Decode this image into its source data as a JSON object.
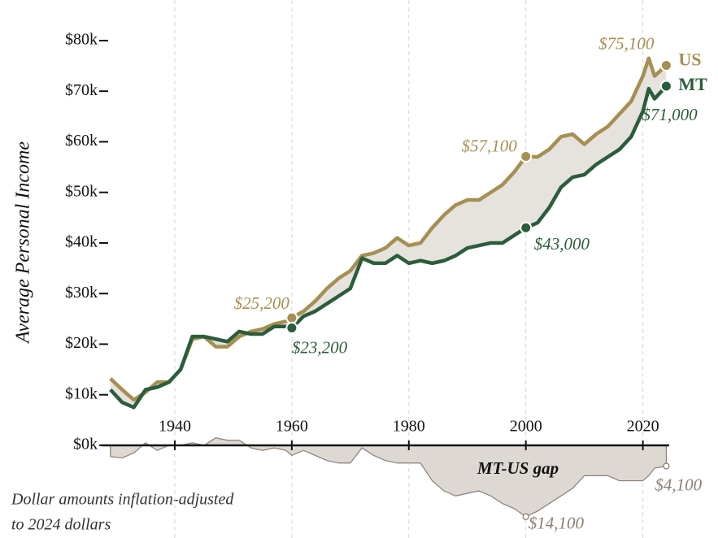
{
  "chart_data": {
    "type": "line",
    "ylabel": "Average Personal Income",
    "note": [
      "Dollar amounts inflation-adjusted",
      "to 2024 dollars"
    ],
    "x": [
      1929,
      1931,
      1933,
      1935,
      1937,
      1939,
      1941,
      1943,
      1945,
      1947,
      1949,
      1951,
      1953,
      1955,
      1957,
      1959,
      1960,
      1962,
      1964,
      1966,
      1968,
      1970,
      1972,
      1974,
      1976,
      1978,
      1980,
      1982,
      1984,
      1986,
      1988,
      1990,
      1992,
      1994,
      1996,
      1998,
      2000,
      2002,
      2004,
      2006,
      2008,
      2010,
      2012,
      2014,
      2016,
      2018,
      2020,
      2021,
      2022,
      2024
    ],
    "series": [
      {
        "name": "US",
        "color": "#a68f52",
        "values": [
          13200,
          11000,
          9000,
          10500,
          12500,
          12500,
          15000,
          21000,
          21500,
          19500,
          19500,
          21500,
          22500,
          23000,
          24000,
          24500,
          25200,
          26500,
          28500,
          31000,
          33000,
          34500,
          37500,
          38000,
          39000,
          41000,
          39500,
          40000,
          43000,
          45500,
          47500,
          48500,
          48500,
          50000,
          51500,
          54000,
          57100,
          57000,
          58500,
          61000,
          61500,
          59500,
          61500,
          63000,
          65500,
          68000,
          73000,
          76500,
          73000,
          75100
        ],
        "value_labels": [
          null,
          null,
          null,
          null,
          null,
          null,
          null,
          null,
          null,
          null,
          null,
          null,
          null,
          null,
          null,
          null,
          "$25,200",
          null,
          null,
          null,
          null,
          null,
          null,
          null,
          null,
          null,
          null,
          null,
          null,
          null,
          null,
          null,
          null,
          null,
          null,
          null,
          "$57,100",
          null,
          null,
          null,
          null,
          null,
          null,
          null,
          null,
          null,
          null,
          null,
          null,
          "$75,100"
        ]
      },
      {
        "name": "MT",
        "color": "#2b5d3c",
        "values": [
          11000,
          8500,
          7500,
          11000,
          11500,
          12500,
          15000,
          21500,
          21500,
          21000,
          20500,
          22500,
          22000,
          22000,
          23500,
          23500,
          23200,
          25500,
          26500,
          28000,
          29500,
          31000,
          37000,
          36000,
          36000,
          37500,
          36000,
          36500,
          36000,
          36500,
          37500,
          39000,
          39500,
          40000,
          40000,
          41500,
          43000,
          44000,
          47000,
          51000,
          53000,
          53500,
          55500,
          57000,
          58500,
          61000,
          66000,
          70500,
          68500,
          71000
        ],
        "value_labels": [
          null,
          null,
          null,
          null,
          null,
          null,
          null,
          null,
          null,
          null,
          null,
          null,
          null,
          null,
          null,
          null,
          "$23,200",
          null,
          null,
          null,
          null,
          null,
          null,
          null,
          null,
          null,
          null,
          null,
          null,
          null,
          null,
          null,
          null,
          null,
          null,
          null,
          "$43,000",
          null,
          null,
          null,
          null,
          null,
          null,
          null,
          null,
          null,
          null,
          null,
          null,
          "$71,000"
        ]
      },
      {
        "name": "MT-US gap",
        "color": "#8a7f76",
        "kind": "area",
        "values": [
          -2200,
          -2500,
          -1500,
          500,
          -1000,
          0,
          0,
          500,
          0,
          1500,
          1000,
          1000,
          -500,
          -1000,
          -500,
          -1000,
          -2000,
          -1000,
          -2000,
          -3000,
          -3500,
          -3500,
          -500,
          -2000,
          -3000,
          -3500,
          -3500,
          -3500,
          -7000,
          -9000,
          -10000,
          -9500,
          -9000,
          -10000,
          -11500,
          -12500,
          -14100,
          -13000,
          -11500,
          -10000,
          -8500,
          -6000,
          -6000,
          -6000,
          -7000,
          -7000,
          -7000,
          -6000,
          -4500,
          -4100
        ],
        "value_labels": [
          null,
          null,
          null,
          null,
          null,
          null,
          null,
          null,
          null,
          null,
          null,
          null,
          null,
          null,
          null,
          null,
          null,
          null,
          null,
          null,
          null,
          null,
          null,
          null,
          null,
          null,
          null,
          null,
          null,
          null,
          null,
          null,
          null,
          null,
          null,
          null,
          "$14,100",
          null,
          null,
          null,
          null,
          null,
          null,
          null,
          null,
          null,
          null,
          null,
          null,
          "$4,100"
        ]
      }
    ],
    "xlim": [
      1927.5,
      2024.5
    ],
    "xticks": [
      1940,
      1960,
      1980,
      2000,
      2020
    ],
    "ylim": [
      -16000,
      82000
    ],
    "yticks": [
      {
        "value": 0,
        "label": "$0k"
      },
      {
        "value": 10000,
        "label": "$10k"
      },
      {
        "value": 20000,
        "label": "$20k"
      },
      {
        "value": 30000,
        "label": "$30k"
      },
      {
        "value": 40000,
        "label": "$40k"
      },
      {
        "value": 50000,
        "label": "$50k"
      },
      {
        "value": 60000,
        "label": "$60k"
      },
      {
        "value": 70000,
        "label": "$70k"
      },
      {
        "value": 80000,
        "label": "$80k"
      }
    ],
    "band_color": "#e6e2dd",
    "grid": true
  }
}
